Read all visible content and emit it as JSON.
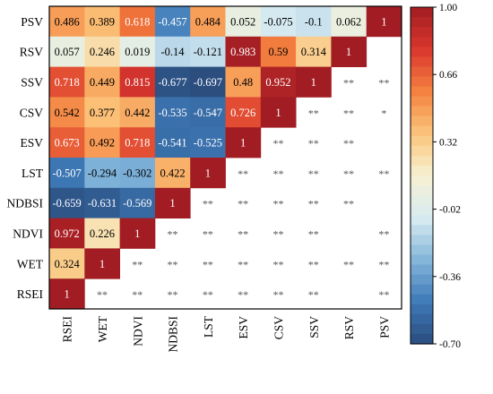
{
  "chart_data": {
    "type": "heatmap",
    "title": "",
    "xlabel": "",
    "ylabel": "",
    "variables": [
      "RSEI",
      "WET",
      "NDVI",
      "NDBSI",
      "LST",
      "ESV",
      "CSV",
      "SSV",
      "RSV",
      "PSV"
    ],
    "row_order": [
      "PSV",
      "RSV",
      "SSV",
      "CSV",
      "ESV",
      "LST",
      "NDBSI",
      "NDVI",
      "WET",
      "RSEI"
    ],
    "lower_triangle": [
      [
        "1",
        "",
        "",
        "",
        "",
        "",
        "",
        "",
        "",
        ""
      ],
      [
        "0.324",
        "1",
        "",
        "",
        "",
        "",
        "",
        "",
        "",
        ""
      ],
      [
        "0.972",
        "0.226",
        "1",
        "",
        "",
        "",
        "",
        "",
        "",
        ""
      ],
      [
        "-0.659",
        "-0.631",
        "-0.569",
        "1",
        "",
        "",
        "",
        "",
        "",
        ""
      ],
      [
        "-0.507",
        "-0.294",
        "-0.302",
        "0.422",
        "1",
        "",
        "",
        "",
        "",
        ""
      ],
      [
        "0.673",
        "0.492",
        "0.718",
        "-0.541",
        "-0.525",
        "1",
        "",
        "",
        "",
        ""
      ],
      [
        "0.542",
        "0.377",
        "0.442",
        "-0.535",
        "-0.547",
        "0.726",
        "1",
        "",
        "",
        ""
      ],
      [
        "0.718",
        "0.449",
        "0.815",
        "-0.677",
        "-0.697",
        "0.48",
        "0.952",
        "1",
        "",
        ""
      ],
      [
        "0.057",
        "0.246",
        "0.019",
        "-0.14",
        "-0.121",
        "0.983",
        "0.59",
        "0.314",
        "1",
        ""
      ],
      [
        "0.486",
        "0.389",
        "0.618",
        "-0.457",
        "0.484",
        "0.052",
        "-0.075",
        "-0.1",
        "0.062",
        "1"
      ]
    ],
    "significance": [
      [
        "",
        "",
        "",
        "",
        "",
        "",
        "",
        "",
        "",
        ""
      ],
      [
        "**",
        "",
        "",
        "",
        "",
        "",
        "",
        "",
        "",
        ""
      ],
      [
        "**",
        "**",
        "",
        "",
        "",
        "",
        "",
        "",
        "",
        ""
      ],
      [
        "**",
        "**",
        "**",
        "",
        "",
        "",
        "",
        "",
        "",
        ""
      ],
      [
        "**",
        "**",
        "**",
        "**",
        "",
        "",
        "",
        "",
        "",
        ""
      ],
      [
        "**",
        "**",
        "**",
        "**",
        "**",
        "",
        "",
        "",
        "",
        ""
      ],
      [
        "**",
        "**",
        "**",
        "**",
        "**",
        "**",
        "",
        "",
        "",
        ""
      ],
      [
        "**",
        "**",
        "**",
        "**",
        "**",
        "**",
        "**",
        "",
        "",
        ""
      ],
      [
        "",
        "**",
        "",
        "**",
        "**",
        "**",
        "**",
        "**",
        "",
        ""
      ],
      [
        "**",
        "**",
        "**",
        "",
        "**",
        "",
        "*",
        "**",
        "",
        ""
      ]
    ],
    "colorbar": {
      "min": -0.7,
      "max": 1.0,
      "ticks": [
        "1.00",
        "0.66",
        "0.32",
        "-0.02",
        "-0.36",
        "-0.70"
      ],
      "tick_values": [
        1.0,
        0.66,
        0.32,
        -0.02,
        -0.36,
        -0.7
      ]
    },
    "colors": [
      "#2b4d7e",
      "#3e7ab8",
      "#84b6da",
      "#d9ecf1",
      "#f6f1d2",
      "#fbc47a",
      "#f4813f",
      "#d9362d",
      "#a11d23"
    ]
  }
}
